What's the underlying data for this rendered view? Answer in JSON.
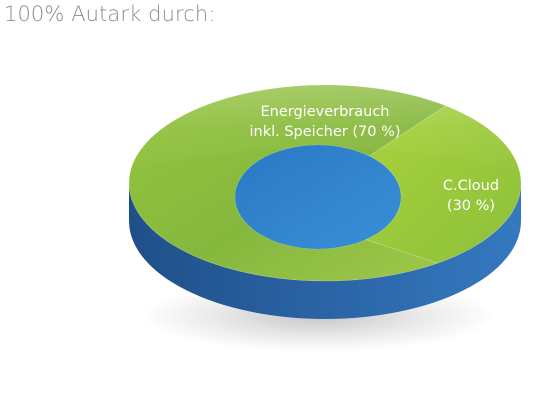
{
  "page": {
    "title": "100% Autark durch:"
  },
  "chart_data": {
    "type": "pie",
    "style": "3d-donut",
    "title": "100% Autark durch:",
    "slices": [
      {
        "label_lines": [
          "Energieverbrauch",
          "inkl. Speicher (70 %)"
        ],
        "value": 70,
        "color": "#8fbf3e"
      },
      {
        "label_lines": [
          "C.Cloud",
          "(30 %)"
        ],
        "value": 30,
        "color": "#9fcb3a"
      }
    ],
    "center_color": "#2f83c9",
    "side_color": "#2a5f9c"
  }
}
